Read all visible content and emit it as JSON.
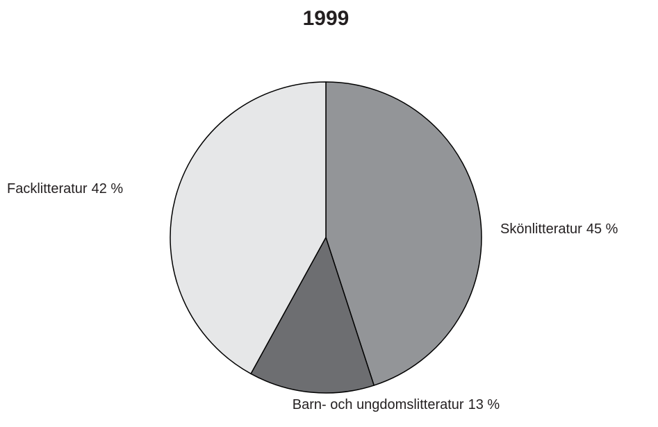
{
  "chart_data": {
    "type": "pie",
    "title": "1999",
    "categories": [
      "Skönlitteratur",
      "Barn- och ungdomslitteratur",
      "Facklitteratur"
    ],
    "values": [
      45,
      13,
      42
    ],
    "value_labels": [
      "45 %",
      "13 %",
      "42 %"
    ],
    "colors": [
      "#939598",
      "#6d6e71",
      "#e6e7e8"
    ]
  }
}
